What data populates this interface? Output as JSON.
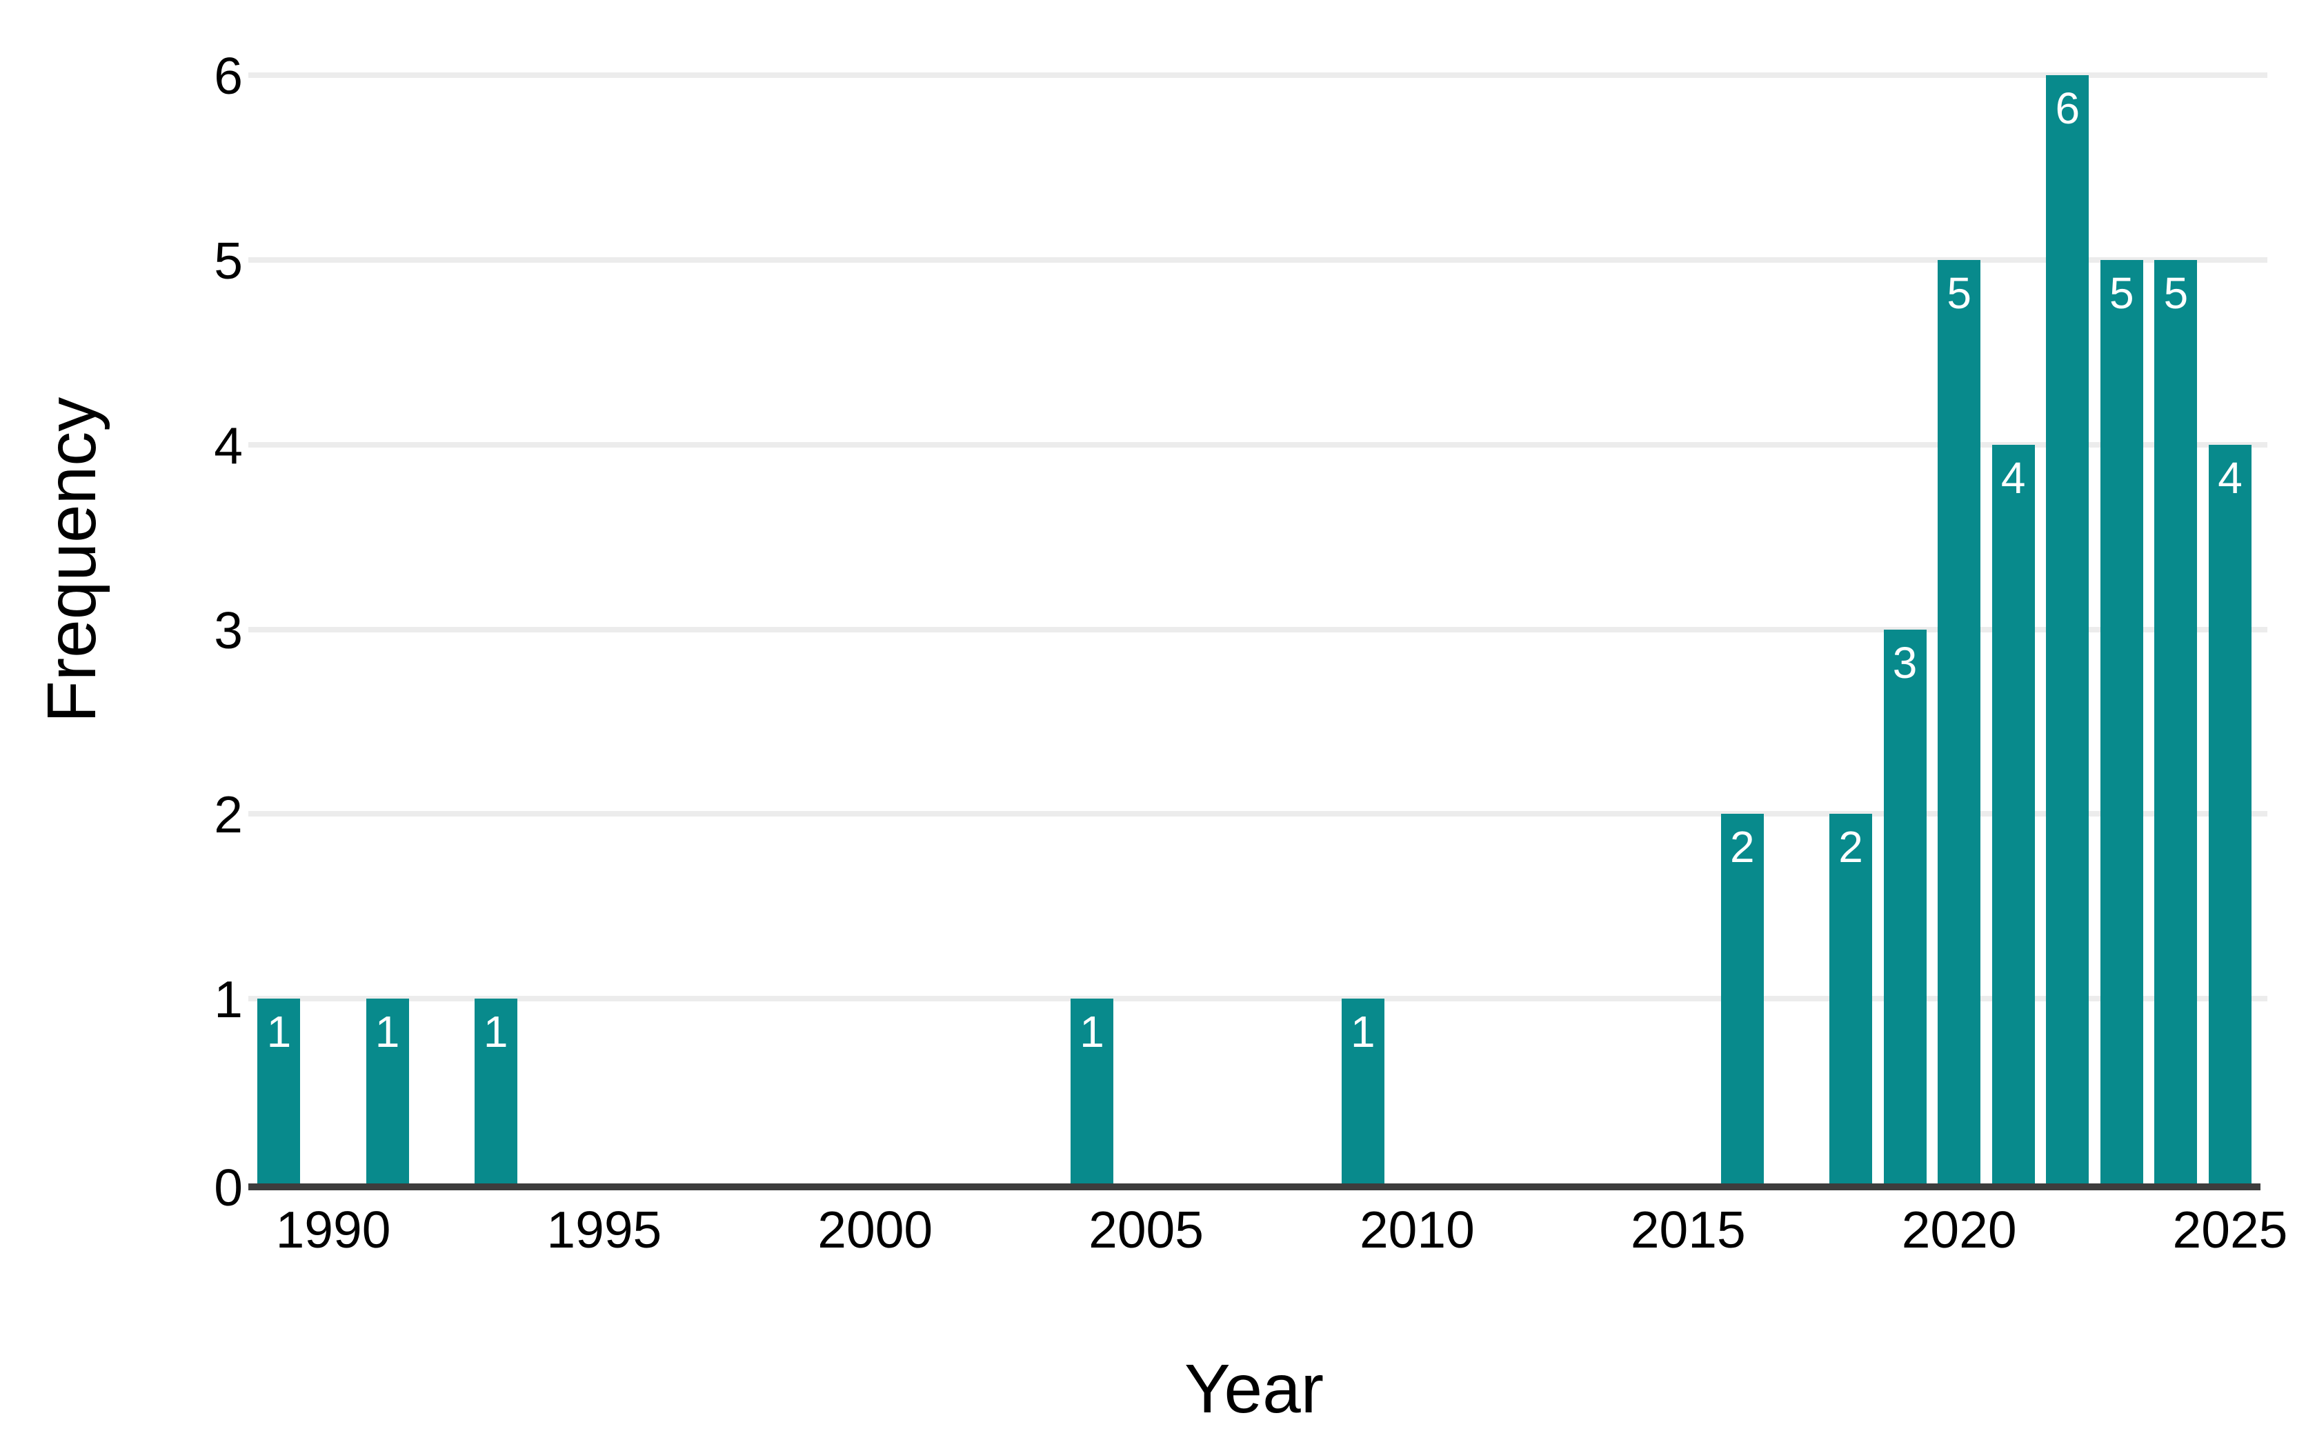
{
  "chart_data": {
    "type": "bar",
    "title": "",
    "xlabel": "Year",
    "ylabel": "Frequency",
    "x": [
      1989,
      1991,
      1993,
      2004,
      2009,
      2016,
      2018,
      2019,
      2020,
      2021,
      2022,
      2023,
      2024,
      2025
    ],
    "values": [
      1,
      1,
      1,
      1,
      1,
      2,
      2,
      3,
      5,
      4,
      6,
      5,
      5,
      4
    ],
    "bar_labels": [
      "1",
      "1",
      "1",
      "1",
      "1",
      "2",
      "2",
      "3",
      "5",
      "4",
      "6",
      "5",
      "5",
      "4"
    ],
    "xticks": [
      1990,
      1995,
      2000,
      2005,
      2010,
      2015,
      2020,
      2025
    ],
    "yticks": [
      0,
      1,
      2,
      3,
      4,
      5,
      6
    ],
    "xlim": [
      1988.4,
      2025.6
    ],
    "ylim": [
      0,
      6
    ],
    "grid": "horizontal",
    "legend": "none",
    "colors": {
      "bar": "#088a8c",
      "bar_label": "#ffffff",
      "gridline": "#ececec",
      "axis_line": "#3d3d3d",
      "text": "#000000",
      "background": "#ffffff"
    }
  }
}
